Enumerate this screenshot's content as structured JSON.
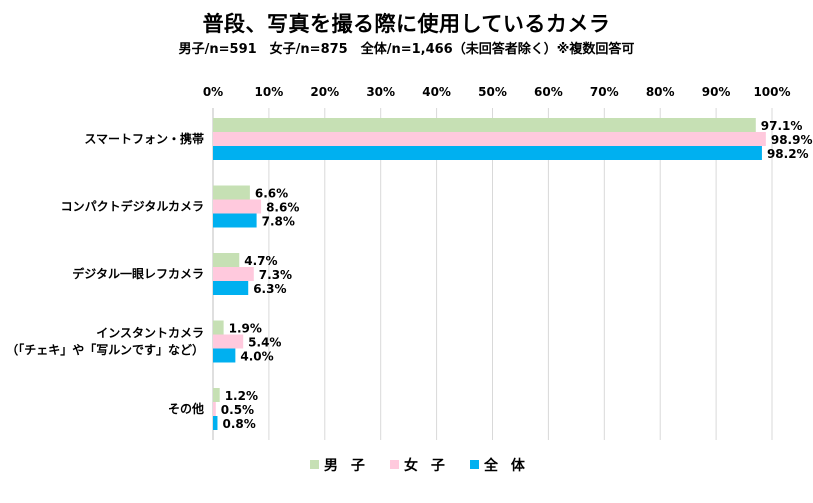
{
  "colors": {
    "male": "#c6e0b4",
    "female": "#ffc9dd",
    "all": "#00b0f0",
    "grid": "#d9d9d9",
    "axis": "#bfbfbf"
  },
  "chart_data": {
    "type": "bar",
    "orientation": "horizontal",
    "title": "普段、写真を撮る際に使用しているカメラ",
    "subtitle": "男子/n=591　女子/n=875　全体/n=1,466（未回答者除く）※複数回答可",
    "categories": [
      [
        "スマートフォン・携帯"
      ],
      [
        "コンパクトデジタルカメラ"
      ],
      [
        "デジタル一眼レフカメラ"
      ],
      [
        "インスタントカメラ",
        "（「チェキ」や「写ルンです」など）"
      ],
      [
        "その他"
      ]
    ],
    "series": [
      {
        "name": "男 子",
        "color_key": "male",
        "values": [
          97.1,
          6.6,
          4.7,
          1.9,
          1.2
        ],
        "labels": [
          "97.1%",
          "6.6%",
          "4.7%",
          "1.9%",
          "1.2%"
        ]
      },
      {
        "name": "女 子",
        "color_key": "female",
        "values": [
          98.9,
          8.6,
          7.3,
          5.4,
          0.5
        ],
        "labels": [
          "98.9%",
          "8.6%",
          "7.3%",
          "5.4%",
          "0.5%"
        ]
      },
      {
        "name": "全 体",
        "color_key": "all",
        "values": [
          98.2,
          7.8,
          6.3,
          4.0,
          0.8
        ],
        "labels": [
          "98.2%",
          "7.8%",
          "6.3%",
          "4.0%",
          "0.8%"
        ]
      }
    ],
    "xlim": [
      0,
      100
    ],
    "xticks": [
      "0%",
      "10%",
      "20%",
      "30%",
      "40%",
      "50%",
      "60%",
      "70%",
      "80%",
      "90%",
      "100%"
    ],
    "grid": true,
    "legend_position": "bottom"
  }
}
